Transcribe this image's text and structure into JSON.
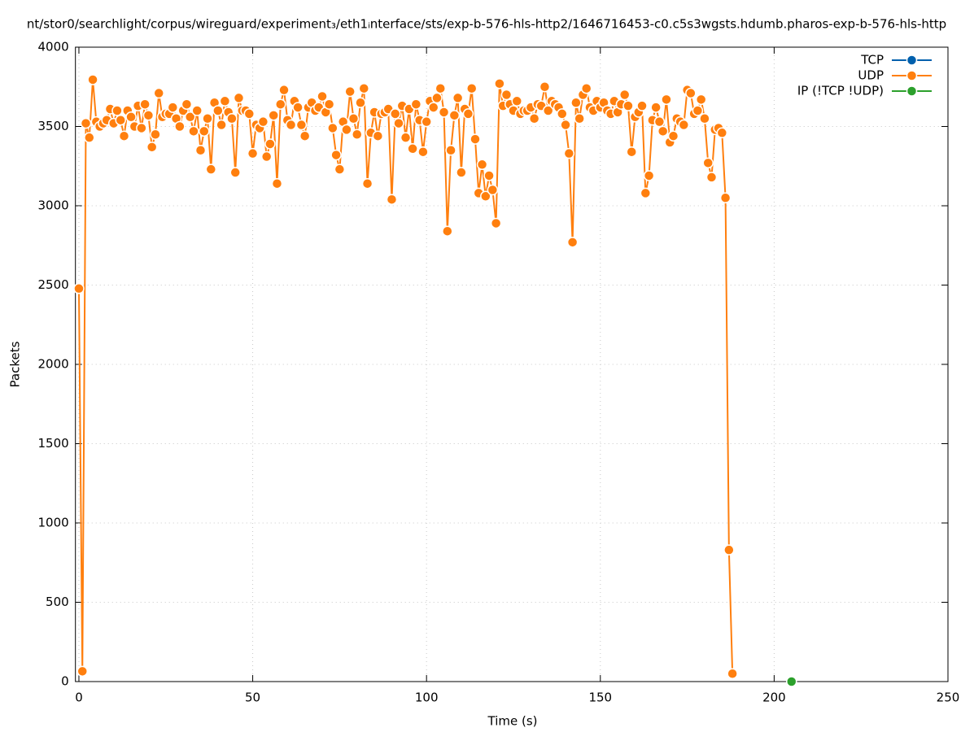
{
  "chart_data": {
    "type": "line",
    "title": "nt/stor0/searchlight/corpus/wireguard/experiment₃/eth1ᵢnterface/sts/exp-b-576-hls-http2/1646716453-c0.c5s3wgsts.hdumb.pharos-exp-b-576-hls-http",
    "xlabel": "Time (s)",
    "ylabel": "Packets",
    "xlim": [
      -1,
      250
    ],
    "xticks": [
      0,
      50,
      100,
      150,
      200,
      250
    ],
    "ylim": [
      0,
      4000
    ],
    "yticks": [
      0,
      500,
      1000,
      1500,
      2000,
      2500,
      3000,
      3500,
      4000
    ],
    "grid": true,
    "legend": "top-right",
    "series": [
      {
        "name": "TCP",
        "color": "#0060ad",
        "x": [],
        "values": []
      },
      {
        "name": "UDP",
        "color": "#ff7f0e",
        "x": [
          0,
          1,
          2,
          3,
          4,
          5,
          6,
          7,
          8,
          9,
          10,
          11,
          12,
          13,
          14,
          15,
          16,
          17,
          18,
          19,
          20,
          21,
          22,
          23,
          24,
          25,
          26,
          27,
          28,
          29,
          30,
          31,
          32,
          33,
          34,
          35,
          36,
          37,
          38,
          39,
          40,
          41,
          42,
          43,
          44,
          45,
          46,
          47,
          48,
          49,
          50,
          51,
          52,
          53,
          54,
          55,
          56,
          57,
          58,
          59,
          60,
          61,
          62,
          63,
          64,
          65,
          66,
          67,
          68,
          69,
          70,
          71,
          72,
          73,
          74,
          75,
          76,
          77,
          78,
          79,
          80,
          81,
          82,
          83,
          84,
          85,
          86,
          87,
          88,
          89,
          90,
          91,
          92,
          93,
          94,
          95,
          96,
          97,
          98,
          99,
          100,
          101,
          102,
          103,
          104,
          105,
          106,
          107,
          108,
          109,
          110,
          111,
          112,
          113,
          114,
          115,
          116,
          117,
          118,
          119,
          120,
          121,
          122,
          123,
          124,
          125,
          126,
          127,
          128,
          129,
          130,
          131,
          132,
          133,
          134,
          135,
          136,
          137,
          138,
          139,
          140,
          141,
          142,
          143,
          144,
          145,
          146,
          147,
          148,
          149,
          150,
          151,
          152,
          153,
          154,
          155,
          156,
          157,
          158,
          159,
          160,
          161,
          162,
          163,
          164,
          165,
          166,
          167,
          168,
          169,
          170,
          171,
          172,
          173,
          174,
          175,
          176,
          177,
          178,
          179,
          180,
          181,
          182,
          183,
          184,
          185,
          186,
          187,
          188
        ],
        "values": [
          2478,
          65,
          3520,
          3430,
          3795,
          3530,
          3500,
          3520,
          3540,
          3610,
          3520,
          3600,
          3540,
          3440,
          3600,
          3560,
          3500,
          3630,
          3490,
          3640,
          3570,
          3370,
          3450,
          3710,
          3560,
          3580,
          3580,
          3620,
          3550,
          3500,
          3600,
          3640,
          3560,
          3470,
          3600,
          3350,
          3470,
          3550,
          3230,
          3650,
          3600,
          3510,
          3660,
          3590,
          3550,
          3210,
          3680,
          3600,
          3600,
          3580,
          3330,
          3510,
          3490,
          3530,
          3310,
          3390,
          3570,
          3140,
          3640,
          3730,
          3540,
          3510,
          3660,
          3620,
          3510,
          3440,
          3620,
          3650,
          3600,
          3620,
          3690,
          3590,
          3640,
          3490,
          3320,
          3230,
          3530,
          3480,
          3720,
          3550,
          3450,
          3650,
          3740,
          3140,
          3460,
          3590,
          3440,
          3580,
          3590,
          3610,
          3040,
          3580,
          3520,
          3630,
          3430,
          3610,
          3360,
          3640,
          3540,
          3340,
          3530,
          3660,
          3620,
          3680,
          3740,
          3590,
          2840,
          3350,
          3570,
          3680,
          3210,
          3610,
          3580,
          3740,
          3420,
          3080,
          3260,
          3060,
          3190,
          3100,
          2890,
          3770,
          3630,
          3700,
          3640,
          3600,
          3660,
          3580,
          3600,
          3600,
          3620,
          3550,
          3640,
          3630,
          3750,
          3600,
          3660,
          3640,
          3620,
          3580,
          3510,
          3330,
          2770,
          3650,
          3550,
          3700,
          3740,
          3620,
          3600,
          3660,
          3620,
          3650,
          3600,
          3580,
          3660,
          3590,
          3640,
          3700,
          3630,
          3340,
          3560,
          3590,
          3630,
          3080,
          3190,
          3540,
          3620,
          3530,
          3470,
          3670,
          3400,
          3440,
          3550,
          3530,
          3510,
          3730,
          3710,
          3580,
          3600,
          3670,
          3550,
          3270,
          3180,
          3480,
          3490,
          3460,
          3050,
          830,
          50
        ]
      },
      {
        "name": "IP (!TCP  !UDP)",
        "color": "#2ca02c",
        "x": [
          205
        ],
        "values": [
          0
        ]
      }
    ]
  }
}
